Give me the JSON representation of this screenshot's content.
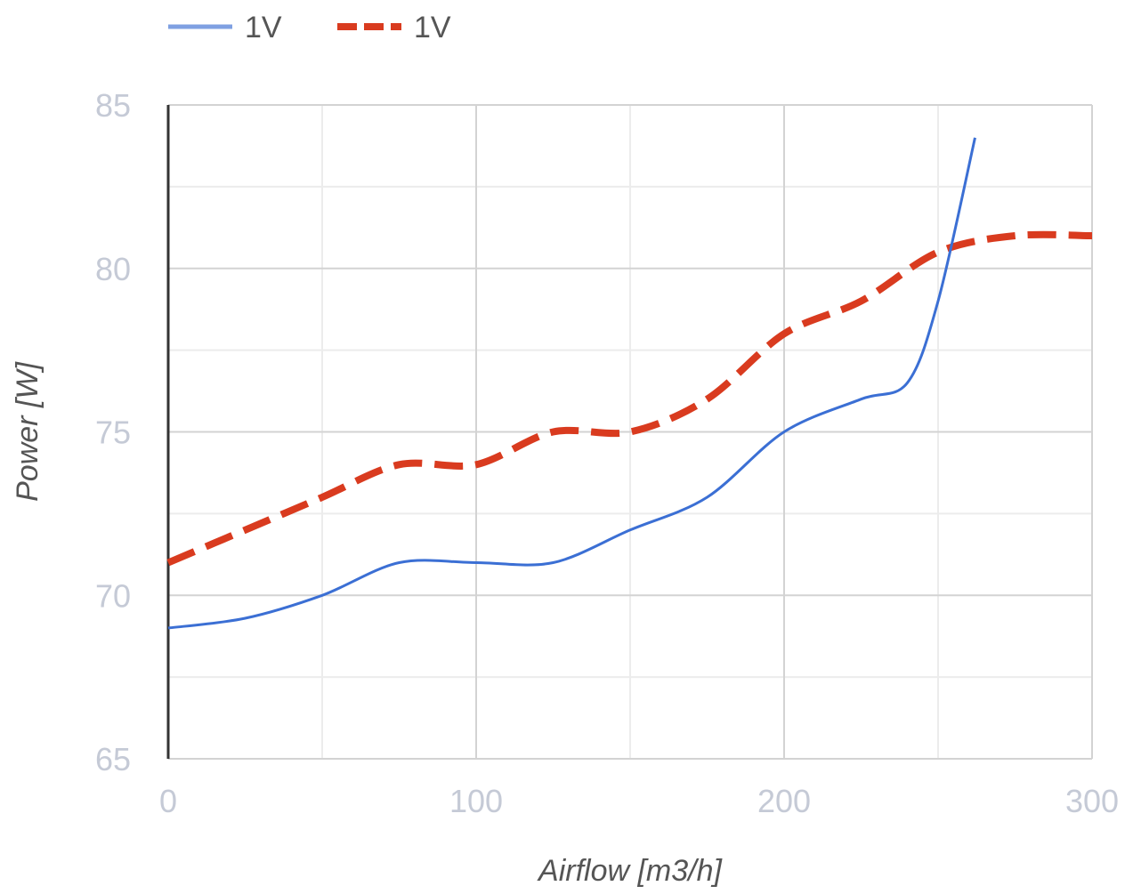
{
  "chart_data": {
    "type": "line",
    "xlabel": "Airflow [m3/h]",
    "ylabel": "Power [W]",
    "xlim": [
      0,
      300
    ],
    "ylim": [
      65,
      85
    ],
    "xticks": [
      0,
      100,
      200,
      300
    ],
    "yticks": [
      65,
      70,
      75,
      80,
      85
    ],
    "grid": true,
    "legend_position": "top-left",
    "series": [
      {
        "name": "1V",
        "color": "#3b6fd4",
        "style": "solid",
        "x": [
          0,
          25,
          50,
          75,
          100,
          125,
          150,
          175,
          200,
          225,
          240,
          250,
          262
        ],
        "y": [
          69,
          69.3,
          70,
          71,
          71,
          71,
          72,
          73,
          75,
          76,
          76.5,
          79,
          84
        ]
      },
      {
        "name": "1V",
        "color": "#d93b1f",
        "style": "dashed",
        "x": [
          0,
          25,
          50,
          75,
          100,
          125,
          150,
          175,
          200,
          225,
          250,
          275,
          300
        ],
        "y": [
          71,
          72,
          73,
          74,
          74,
          75,
          75,
          76,
          78,
          79,
          80.5,
          81,
          81
        ]
      }
    ]
  }
}
